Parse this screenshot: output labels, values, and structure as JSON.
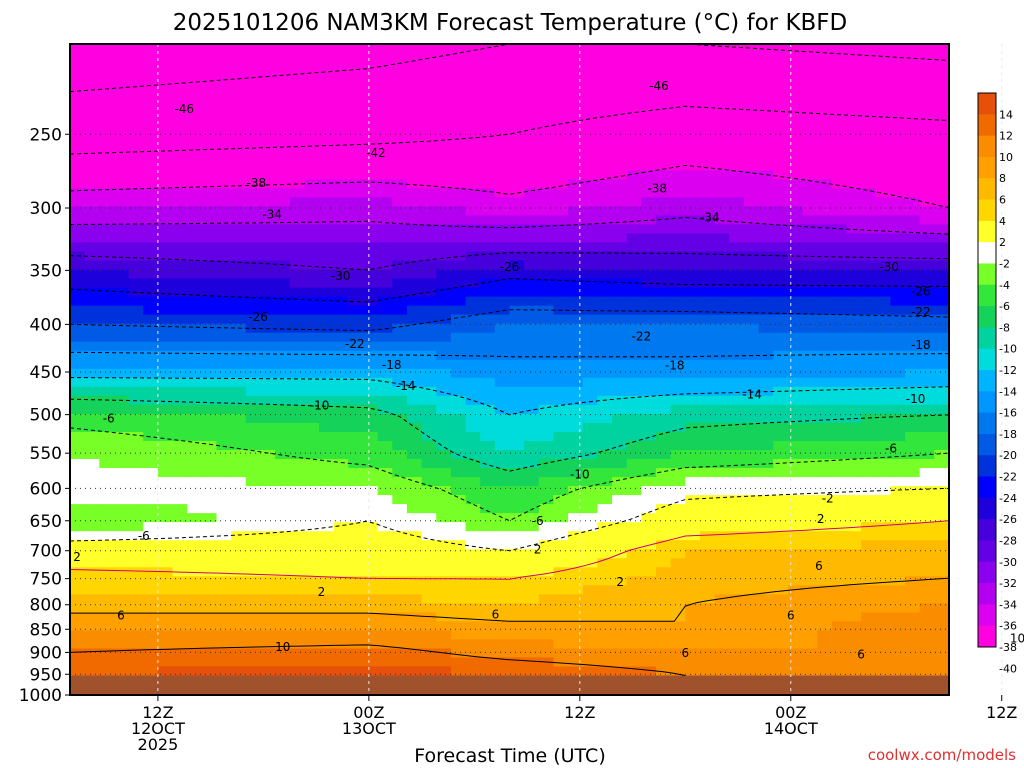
{
  "title": "2025101206 NAM3KM Forecast Temperature (°C) for KBFD",
  "xlabel": "Forecast Time (UTC)",
  "credit": "coolwx.com/models",
  "chart_data": {
    "type": "heatmap",
    "title": "2025101206 NAM3KM Forecast Temperature (°C) for KBFD",
    "xlabel": "Forecast Time (UTC)",
    "ylabel": "",
    "x_domain_hours_from_12Z_12OCT": [
      -5,
      45
    ],
    "y_axis": {
      "scale": "log-pressure",
      "ticks": [
        250,
        300,
        350,
        400,
        450,
        500,
        550,
        600,
        650,
        700,
        750,
        800,
        850,
        900,
        950,
        1000
      ],
      "range_hPa": [
        200,
        1000
      ]
    },
    "x_ticks": [
      {
        "hour": 0,
        "line1": "12Z",
        "line2": "12OCT",
        "line3": "2025"
      },
      {
        "hour": 12,
        "line1": "00Z",
        "line2": "13OCT",
        "line3": ""
      },
      {
        "hour": 24,
        "line1": "12Z",
        "line2": "",
        "line3": ""
      },
      {
        "hour": 36,
        "line1": "00Z",
        "line2": "14OCT",
        "line3": ""
      },
      {
        "hour": 48,
        "line1": "12Z",
        "line2": "",
        "line3": ""
      }
    ],
    "grid": {
      "x_dashed": true,
      "y_dotted": true
    },
    "colorbar": {
      "placement": "right",
      "labels": [
        "14",
        "12",
        "10",
        "8",
        "6",
        "4",
        "2",
        "-2",
        "-4",
        "-6",
        "-8",
        "-10",
        "-12",
        "-14",
        "-16",
        "-18",
        "-20",
        "-22",
        "-24",
        "-26",
        "-28",
        "-30",
        "-32",
        "-34",
        "-36",
        "-38",
        "-40"
      ],
      "colors": [
        "#e6500a",
        "#f06a00",
        "#fa8c00",
        "#ffa000",
        "#ffba00",
        "#ffd600",
        "#ffff2a",
        "#ffffff",
        "#78ff28",
        "#32e63c",
        "#14d25a",
        "#00d2a0",
        "#00dcdc",
        "#00b4ff",
        "#0096ff",
        "#0078f0",
        "#005ae6",
        "#0032dc",
        "#0000ff",
        "#1e00dc",
        "#4600dc",
        "#6400e6",
        "#8c00f0",
        "#b400f0",
        "#dc00f0",
        "#ff00e0"
      ]
    },
    "pressure_temperature_profiles": [
      {
        "hour": -5,
        "levels_hPa": [
          200,
          250,
          300,
          350,
          400,
          450,
          500,
          550,
          600,
          650,
          700,
          750,
          800,
          850,
          900,
          950
        ],
        "temps_C": [
          -48,
          -44,
          -36,
          -28,
          -22,
          -15,
          -7,
          -4,
          -3,
          -6,
          0,
          3,
          5,
          8,
          10,
          12
        ]
      },
      {
        "hour": 12,
        "levels_hPa": [
          200,
          250,
          300,
          350,
          400,
          450,
          500,
          550,
          600,
          650,
          700,
          750,
          800,
          850,
          900,
          950
        ],
        "temps_C": [
          -47,
          -43,
          -35,
          -30,
          -23,
          -15,
          -9,
          -7,
          -4,
          -2,
          0,
          2,
          5,
          8,
          11,
          13
        ]
      },
      {
        "hour": 20,
        "levels_hPa": [
          200,
          250,
          300,
          350,
          400,
          450,
          500,
          550,
          600,
          650,
          700,
          750,
          800,
          850,
          900,
          950
        ],
        "temps_C": [
          -46,
          -42,
          -37,
          -27,
          -20,
          -17,
          -14,
          -12,
          -8,
          -6,
          -2,
          2,
          4,
          7,
          9,
          12
        ]
      },
      {
        "hour": 30,
        "levels_hPa": [
          200,
          250,
          300,
          350,
          400,
          450,
          500,
          550,
          600,
          650,
          700,
          750,
          800,
          850,
          900,
          950
        ],
        "temps_C": [
          -46,
          -40,
          -35,
          -28,
          -20,
          -17,
          -11,
          -8,
          -3,
          0,
          4,
          5,
          6,
          6,
          8,
          10
        ]
      },
      {
        "hour": 45,
        "levels_hPa": [
          200,
          250,
          300,
          350,
          400,
          450,
          500,
          550,
          600,
          650,
          700,
          750,
          800,
          850,
          900,
          950
        ],
        "temps_C": [
          -47,
          -41,
          -38,
          -28,
          -21,
          -16,
          -10,
          -6,
          -2,
          2,
          5,
          6,
          8,
          10,
          8,
          9
        ]
      }
    ],
    "contour_labels": [
      {
        "text": "-46",
        "hour": 1.5,
        "p": 235
      },
      {
        "text": "-42",
        "hour": 12.4,
        "p": 262
      },
      {
        "text": "-38",
        "hour": 5.6,
        "p": 282
      },
      {
        "text": "-34",
        "hour": 6.5,
        "p": 305
      },
      {
        "text": "-30",
        "hour": 10.4,
        "p": 355
      },
      {
        "text": "-26",
        "hour": 5.7,
        "p": 393
      },
      {
        "text": "-22",
        "hour": 11.2,
        "p": 420
      },
      {
        "text": "-18",
        "hour": 13.3,
        "p": 442
      },
      {
        "text": "-14",
        "hour": 14.1,
        "p": 466
      },
      {
        "text": "-10",
        "hour": 9.2,
        "p": 489
      },
      {
        "text": "-6",
        "hour": -2.8,
        "p": 505
      },
      {
        "text": "-6",
        "hour": -0.8,
        "p": 675
      },
      {
        "text": "2",
        "hour": -4.6,
        "p": 711
      },
      {
        "text": "2",
        "hour": 9.3,
        "p": 775
      },
      {
        "text": "6",
        "hour": -2.1,
        "p": 822
      },
      {
        "text": "10",
        "hour": 7.1,
        "p": 888
      },
      {
        "text": "-26",
        "hour": 20.0,
        "p": 347
      },
      {
        "text": "-10",
        "hour": 24.0,
        "p": 580
      },
      {
        "text": "-6",
        "hour": 21.6,
        "p": 650
      },
      {
        "text": "2",
        "hour": 21.6,
        "p": 698
      },
      {
        "text": "6",
        "hour": 19.2,
        "p": 820
      },
      {
        "text": "2",
        "hour": 26.3,
        "p": 756
      },
      {
        "text": "-46",
        "hour": 28.5,
        "p": 222
      },
      {
        "text": "-38",
        "hour": 28.4,
        "p": 286
      },
      {
        "text": "-34",
        "hour": 31.4,
        "p": 307
      },
      {
        "text": "-22",
        "hour": 27.5,
        "p": 412
      },
      {
        "text": "-18",
        "hour": 29.4,
        "p": 443
      },
      {
        "text": "-14",
        "hour": 33.8,
        "p": 476
      },
      {
        "text": "-30",
        "hour": 41.6,
        "p": 347
      },
      {
        "text": "-26",
        "hour": 43.4,
        "p": 369
      },
      {
        "text": "-22",
        "hour": 43.4,
        "p": 388
      },
      {
        "text": "-18",
        "hour": 43.4,
        "p": 421
      },
      {
        "text": "-10",
        "hour": 43.1,
        "p": 481
      },
      {
        "text": "-6",
        "hour": 41.7,
        "p": 544
      },
      {
        "text": "-2",
        "hour": 38.1,
        "p": 615
      },
      {
        "text": "2",
        "hour": 37.7,
        "p": 647
      },
      {
        "text": "6",
        "hour": 37.6,
        "p": 727
      },
      {
        "text": "6",
        "hour": 36.0,
        "p": 822
      },
      {
        "text": "6",
        "hour": 40.0,
        "p": 905
      },
      {
        "text": "10",
        "hour": 48.9,
        "p": 870
      },
      {
        "text": "6",
        "hour": 30.0,
        "p": 901
      }
    ]
  }
}
